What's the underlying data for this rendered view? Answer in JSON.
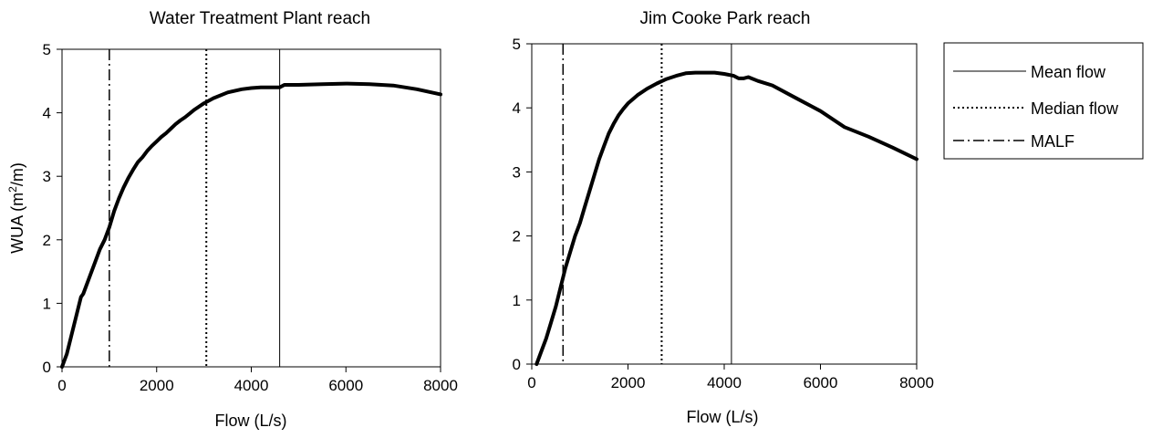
{
  "chart_data": [
    {
      "type": "line",
      "title": "Water Treatment Plant reach",
      "xlabel": "Flow (L/s)",
      "ylabel": "WUA (m²/m)",
      "ylabel_parts": [
        "WUA (m",
        "2",
        "/m)"
      ],
      "xlim": [
        0,
        8000
      ],
      "ylim": [
        0,
        5
      ],
      "xticks": [
        "0",
        "2000",
        "4000",
        "6000",
        "8000"
      ],
      "yticks": [
        "0",
        "1",
        "2",
        "3",
        "4",
        "5"
      ],
      "grid": false,
      "series": [
        {
          "x": [
            0,
            100,
            200,
            300,
            400,
            450,
            500,
            600,
            700,
            800,
            900,
            1000,
            1100,
            1200,
            1300,
            1400,
            1500,
            1600,
            1700,
            1800,
            1900,
            2000,
            2100,
            2200,
            2300,
            2400,
            2500,
            2600,
            2800,
            3000,
            3200,
            3500,
            3800,
            4000,
            4200,
            4600,
            4700,
            5000,
            5500,
            6000,
            6500,
            7000,
            7500,
            8000
          ],
          "y": [
            0,
            0.2,
            0.5,
            0.8,
            1.1,
            1.15,
            1.25,
            1.45,
            1.65,
            1.85,
            2.0,
            2.2,
            2.45,
            2.65,
            2.82,
            2.97,
            3.1,
            3.22,
            3.3,
            3.4,
            3.48,
            3.55,
            3.62,
            3.68,
            3.75,
            3.82,
            3.88,
            3.93,
            4.05,
            4.15,
            4.23,
            4.32,
            4.37,
            4.39,
            4.4,
            4.4,
            4.44,
            4.44,
            4.45,
            4.46,
            4.45,
            4.43,
            4.37,
            4.29
          ]
        }
      ],
      "reference_lines": [
        {
          "name": "Mean flow",
          "x": 4600,
          "style": "solid"
        },
        {
          "name": "Median flow",
          "x": 3050,
          "style": "dotted"
        },
        {
          "name": "MALF",
          "x": 1000,
          "style": "dash-dot"
        }
      ]
    },
    {
      "type": "line",
      "title": "Jim Cooke Park reach",
      "xlabel": "Flow (L/s)",
      "ylabel": "",
      "xlim": [
        0,
        8000
      ],
      "ylim": [
        0,
        5
      ],
      "xticks": [
        "0",
        "2000",
        "4000",
        "6000",
        "8000"
      ],
      "yticks": [
        "0",
        "1",
        "2",
        "3",
        "4",
        "5"
      ],
      "grid": false,
      "series": [
        {
          "x": [
            100,
            200,
            300,
            400,
            500,
            600,
            700,
            800,
            900,
            1000,
            1100,
            1200,
            1300,
            1400,
            1500,
            1600,
            1700,
            1800,
            1900,
            2000,
            2200,
            2400,
            2600,
            2800,
            3000,
            3200,
            3400,
            3600,
            3800,
            4000,
            4200,
            4300,
            4400,
            4500,
            4700,
            5000,
            5500,
            6000,
            6500,
            7000,
            7500,
            8000
          ],
          "y": [
            0,
            0.2,
            0.4,
            0.65,
            0.9,
            1.2,
            1.5,
            1.75,
            2.0,
            2.2,
            2.45,
            2.7,
            2.95,
            3.2,
            3.4,
            3.6,
            3.75,
            3.88,
            3.98,
            4.07,
            4.2,
            4.3,
            4.38,
            4.45,
            4.5,
            4.54,
            4.55,
            4.55,
            4.55,
            4.53,
            4.5,
            4.46,
            4.46,
            4.48,
            4.42,
            4.35,
            4.15,
            3.95,
            3.7,
            3.55,
            3.38,
            3.2
          ]
        }
      ],
      "reference_lines": [
        {
          "name": "Mean flow",
          "x": 4150,
          "style": "solid"
        },
        {
          "name": "Median flow",
          "x": 2700,
          "style": "dotted"
        },
        {
          "name": "MALF",
          "x": 650,
          "style": "dash-dot"
        }
      ]
    }
  ],
  "legend": {
    "placement": "right",
    "entries": [
      {
        "label": "Mean flow",
        "style": "solid"
      },
      {
        "label": "Median flow",
        "style": "dotted"
      },
      {
        "label": "MALF",
        "style": "dash-dot"
      }
    ]
  }
}
